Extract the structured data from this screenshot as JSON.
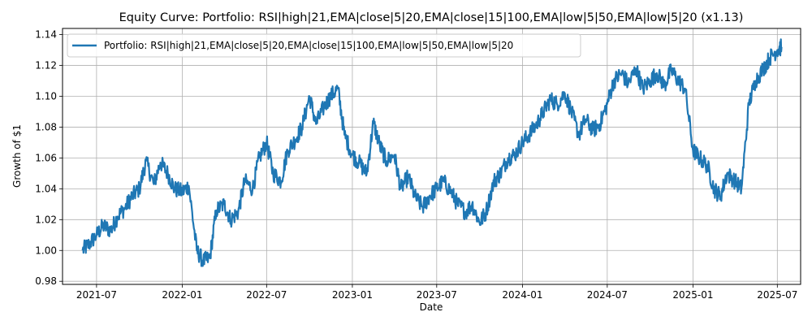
{
  "chart_data": {
    "type": "line",
    "title": "Equity Curve: Portfolio: RSI|high|21,EMA|close|5|20,EMA|close|15|100,EMA|low|5|50,EMA|low|5|20 (x1.13)",
    "xlabel": "Date",
    "ylabel": "Growth of $1",
    "x_ticks": [
      "2021-07",
      "2022-01",
      "2022-07",
      "2023-01",
      "2023-07",
      "2024-01",
      "2024-07",
      "2025-01",
      "2025-07"
    ],
    "y_ticks": [
      "0.98",
      "1.00",
      "1.02",
      "1.04",
      "1.06",
      "1.08",
      "1.10",
      "1.12",
      "1.14"
    ],
    "xlim": [
      "2021-04-19",
      "2025-08-20"
    ],
    "ylim": [
      0.978,
      1.144
    ],
    "grid": true,
    "legend": "upper left",
    "series": [
      {
        "name": "Portfolio: RSI|high|21,EMA|close|5|20,EMA|close|15|100,EMA|low|5|50,EMA|low|5|20",
        "color": "#1f77b4",
        "x": [
          "2021-06-01",
          "2021-06-15",
          "2021-07-01",
          "2021-07-15",
          "2021-08-01",
          "2021-08-15",
          "2021-09-01",
          "2021-09-15",
          "2021-10-01",
          "2021-10-15",
          "2021-11-01",
          "2021-11-15",
          "2021-12-01",
          "2021-12-15",
          "2022-01-01",
          "2022-01-15",
          "2022-02-01",
          "2022-02-15",
          "2022-03-01",
          "2022-03-15",
          "2022-04-01",
          "2022-04-15",
          "2022-05-01",
          "2022-05-15",
          "2022-06-01",
          "2022-06-15",
          "2022-07-01",
          "2022-07-15",
          "2022-08-01",
          "2022-08-15",
          "2022-09-01",
          "2022-09-15",
          "2022-10-01",
          "2022-10-15",
          "2022-11-01",
          "2022-11-15",
          "2022-12-01",
          "2022-12-15",
          "2023-01-01",
          "2023-01-15",
          "2023-02-01",
          "2023-02-15",
          "2023-03-01",
          "2023-03-15",
          "2023-04-01",
          "2023-04-15",
          "2023-05-01",
          "2023-05-15",
          "2023-06-01",
          "2023-06-15",
          "2023-07-01",
          "2023-07-15",
          "2023-08-01",
          "2023-08-15",
          "2023-09-01",
          "2023-09-15",
          "2023-10-01",
          "2023-10-15",
          "2023-11-01",
          "2023-11-15",
          "2023-12-01",
          "2023-12-15",
          "2024-01-01",
          "2024-01-15",
          "2024-02-01",
          "2024-02-15",
          "2024-03-01",
          "2024-03-15",
          "2024-04-01",
          "2024-04-15",
          "2024-05-01",
          "2024-05-15",
          "2024-06-01",
          "2024-06-15",
          "2024-07-01",
          "2024-07-15",
          "2024-08-01",
          "2024-08-15",
          "2024-09-01",
          "2024-09-15",
          "2024-10-01",
          "2024-10-15",
          "2024-11-01",
          "2024-11-15",
          "2024-12-01",
          "2024-12-15",
          "2025-01-01",
          "2025-01-15",
          "2025-02-01",
          "2025-02-15",
          "2025-03-01",
          "2025-03-15",
          "2025-04-01",
          "2025-04-15",
          "2025-05-01",
          "2025-05-15",
          "2025-06-01",
          "2025-06-15",
          "2025-07-01",
          "2025-07-10"
        ],
        "values": [
          1.0,
          1.004,
          1.01,
          1.016,
          1.013,
          1.022,
          1.028,
          1.035,
          1.04,
          1.058,
          1.043,
          1.057,
          1.05,
          1.04,
          1.038,
          1.042,
          1.0,
          0.993,
          0.995,
          1.026,
          1.03,
          1.02,
          1.025,
          1.045,
          1.04,
          1.06,
          1.07,
          1.05,
          1.045,
          1.065,
          1.072,
          1.08,
          1.1,
          1.082,
          1.093,
          1.1,
          1.105,
          1.075,
          1.062,
          1.057,
          1.05,
          1.083,
          1.068,
          1.058,
          1.062,
          1.04,
          1.048,
          1.035,
          1.028,
          1.035,
          1.04,
          1.045,
          1.038,
          1.03,
          1.025,
          1.03,
          1.018,
          1.025,
          1.045,
          1.05,
          1.06,
          1.062,
          1.07,
          1.075,
          1.082,
          1.09,
          1.098,
          1.095,
          1.102,
          1.09,
          1.075,
          1.085,
          1.078,
          1.082,
          1.095,
          1.11,
          1.115,
          1.108,
          1.118,
          1.105,
          1.11,
          1.115,
          1.107,
          1.117,
          1.11,
          1.105,
          1.065,
          1.06,
          1.055,
          1.04,
          1.035,
          1.05,
          1.045,
          1.04,
          1.095,
          1.11,
          1.118,
          1.125,
          1.13,
          1.132
        ]
      }
    ]
  }
}
